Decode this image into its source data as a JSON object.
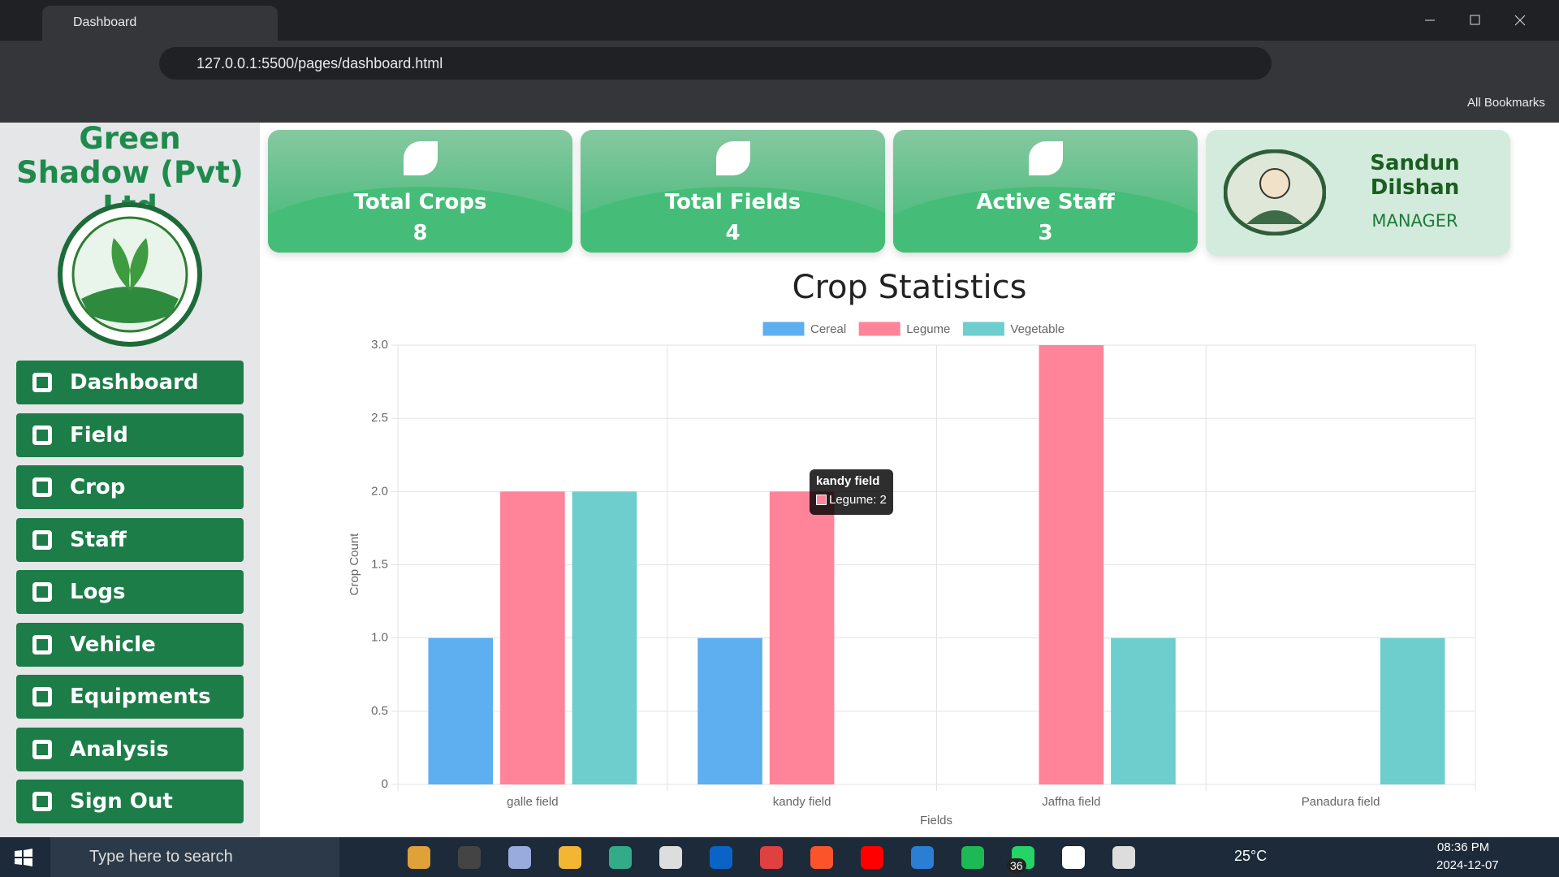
{
  "browser": {
    "tab_title": "Dashboard",
    "url": "127.0.0.1:5500/pages/dashboard.html",
    "bookmarks": "All Bookmarks"
  },
  "sidebar": {
    "brand": "Green Shadow (Pvt) Ltd",
    "menu": [
      "Dashboard",
      "Field",
      "Crop",
      "Staff",
      "Logs",
      "Vehicle",
      "Equipments",
      "Analysis",
      "Sign Out"
    ]
  },
  "cards": [
    {
      "label": "Total Crops",
      "value": 8
    },
    {
      "label": "Total Fields",
      "value": 4
    },
    {
      "label": "Active Staff",
      "value": 3
    }
  ],
  "profile": {
    "name": "Sandun Dilshan",
    "role": "MANAGER"
  },
  "chart_data": {
    "type": "bar",
    "title": "Crop Statistics",
    "x_label": "Fields",
    "y_label": "Crop Count",
    "categories": [
      "galle field",
      "kandy field",
      "Jaffna field",
      "Panadura field"
    ],
    "series": [
      {
        "name": "Cereal",
        "color": "#5eaff0",
        "values": [
          1,
          1,
          0,
          0
        ]
      },
      {
        "name": "Legume",
        "color": "#ff8399",
        "values": [
          2,
          2,
          3,
          0
        ]
      },
      {
        "name": "Vegetable",
        "color": "#6ecdcd",
        "values": [
          2,
          0,
          1,
          1
        ]
      }
    ],
    "ylim": [
      0,
      3
    ],
    "yticks": [
      0,
      0.5,
      {
        "value": 1,
        "label": "1.0"
      },
      1.5,
      {
        "value": 2,
        "label": "2.0"
      },
      2.5,
      {
        "value": 3,
        "label": "3.0"
      }
    ],
    "grid": true,
    "legend": "top",
    "tooltip": {
      "title": "kandy field",
      "label": "Legume: 2"
    }
  },
  "taskbar": {
    "search": "Type here to search",
    "weather": "25°C",
    "time": "08:36 PM",
    "date": "2024-12-07",
    "badge": 36
  }
}
